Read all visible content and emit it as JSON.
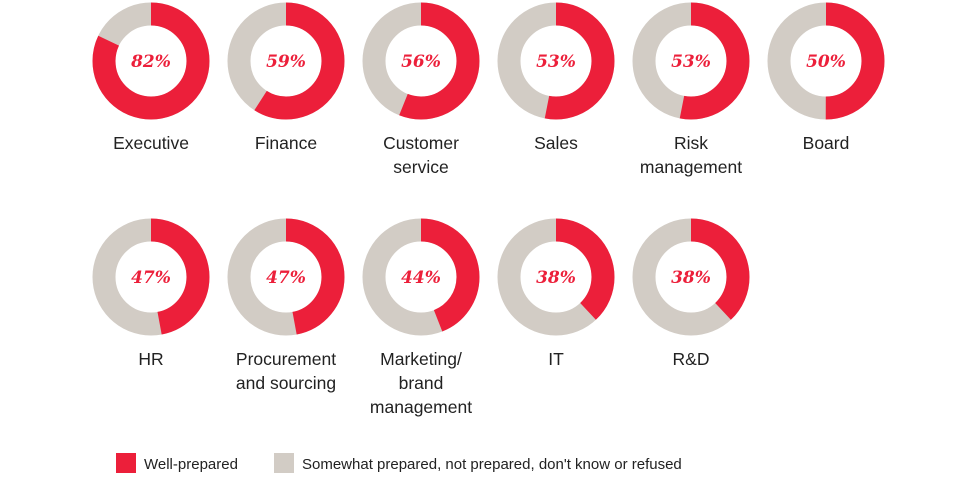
{
  "chart_data": {
    "type": "pie",
    "colors": {
      "well_prepared": "#EC1F3A",
      "other": "#D2CCC5",
      "text": "#222222"
    },
    "legend": [
      {
        "label": "Well-prepared",
        "color": "#EC1F3A"
      },
      {
        "label": "Somewhat prepared, not prepared, don't know or refused",
        "color": "#D2CCC5"
      }
    ],
    "items": [
      {
        "label": [
          "Executive"
        ],
        "value": 82,
        "value_label": "82%"
      },
      {
        "label": [
          "Finance"
        ],
        "value": 59,
        "value_label": "59%"
      },
      {
        "label": [
          "Customer",
          "service"
        ],
        "value": 56,
        "value_label": "56%"
      },
      {
        "label": [
          "Sales"
        ],
        "value": 53,
        "value_label": "53%"
      },
      {
        "label": [
          "Risk",
          "management"
        ],
        "value": 53,
        "value_label": "53%"
      },
      {
        "label": [
          "Board"
        ],
        "value": 50,
        "value_label": "50%"
      },
      {
        "label": [
          "HR"
        ],
        "value": 47,
        "value_label": "47%"
      },
      {
        "label": [
          "Procurement",
          "and sourcing"
        ],
        "value": 47,
        "value_label": "47%"
      },
      {
        "label": [
          "Marketing/",
          "brand",
          "management"
        ],
        "value": 44,
        "value_label": "44%"
      },
      {
        "label": [
          "IT"
        ],
        "value": 38,
        "value_label": "38%"
      },
      {
        "label": [
          "R&D"
        ],
        "value": 38,
        "value_label": "38%"
      }
    ]
  }
}
